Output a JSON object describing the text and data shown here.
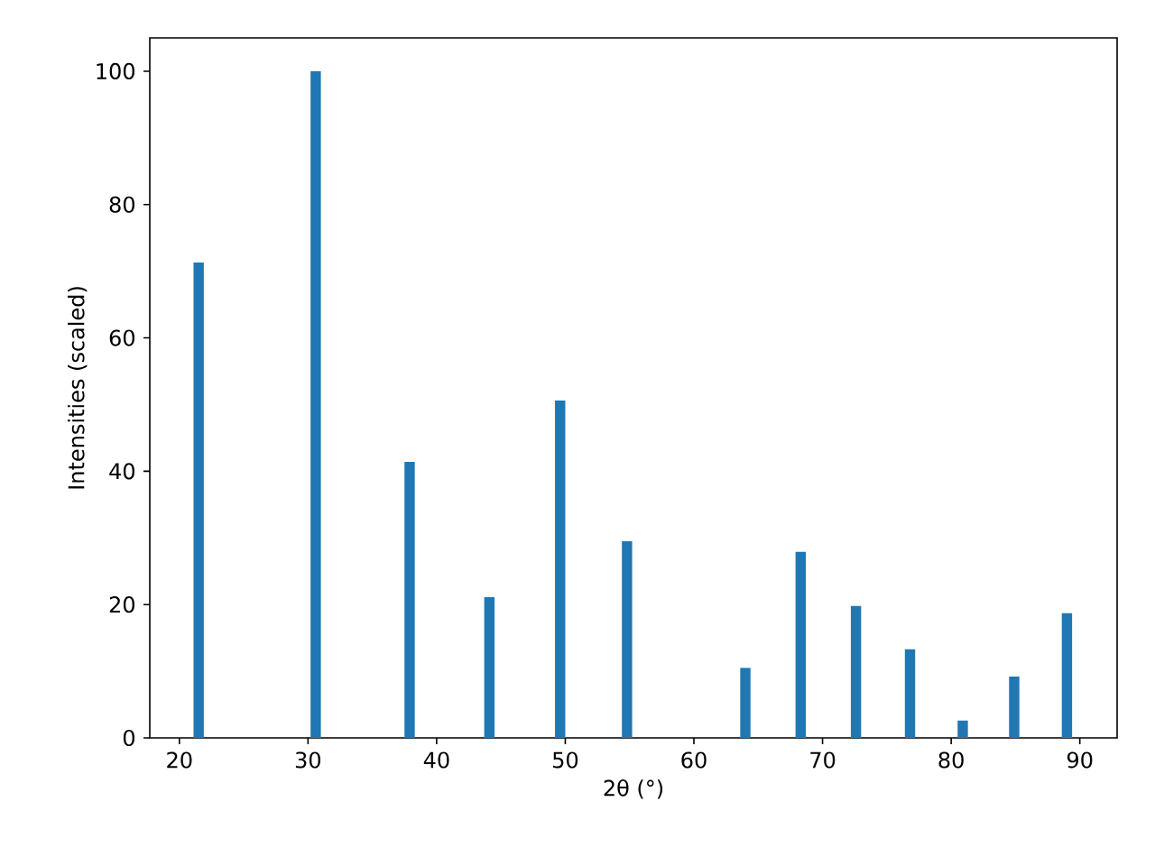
{
  "chart_data": {
    "type": "bar",
    "xlabel": "2θ (°)",
    "ylabel": "Intensities (scaled)",
    "x": [
      21.5,
      30.6,
      37.9,
      44.1,
      49.6,
      54.8,
      64.0,
      68.3,
      72.6,
      76.8,
      80.9,
      84.9,
      89.0
    ],
    "values": [
      71.3,
      100,
      41.4,
      21.1,
      50.6,
      29.5,
      10.5,
      27.9,
      19.8,
      13.3,
      2.6,
      9.2,
      18.7
    ],
    "color": "#1f77b4",
    "xlim": [
      17.7,
      92.9
    ],
    "ylim": [
      0,
      105
    ],
    "xticks": [
      20,
      30,
      40,
      50,
      60,
      70,
      80,
      90
    ],
    "yticks": [
      0,
      20,
      40,
      60,
      80,
      100
    ]
  }
}
